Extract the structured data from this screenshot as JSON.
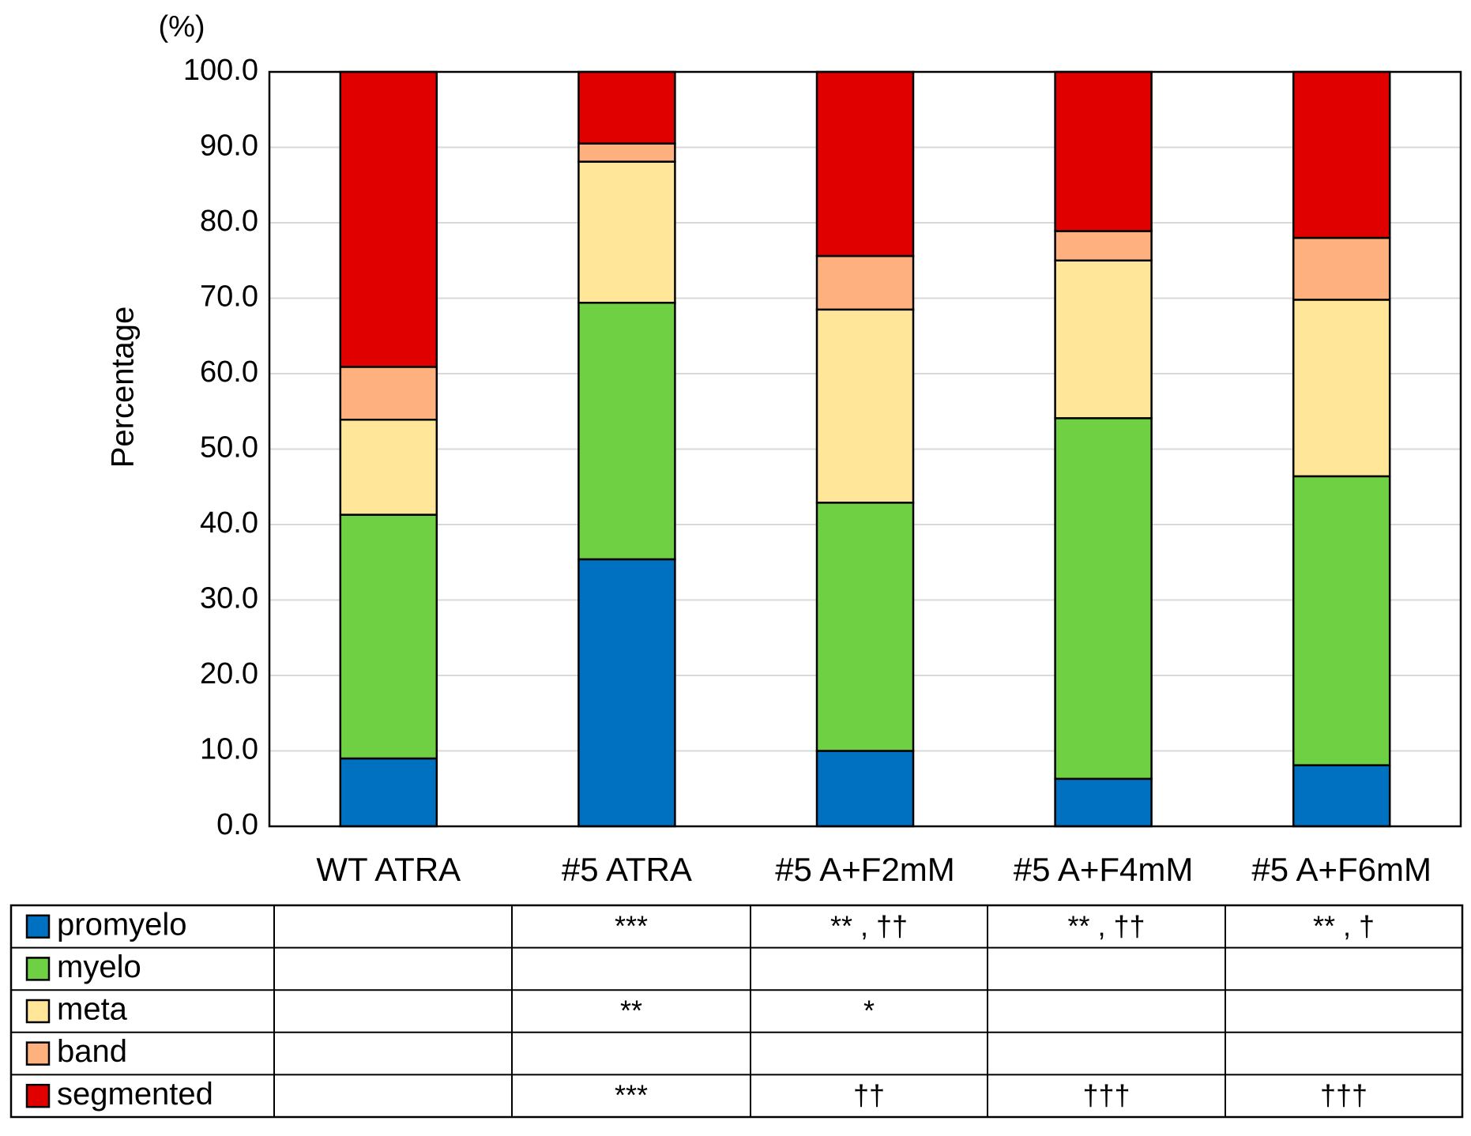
{
  "chart_data": {
    "type": "stacked_bar",
    "y_unit": "(%)",
    "y_label": "Percentage",
    "categories": [
      "WT ATRA",
      "#5 ATRA",
      "#5 A+F2mM",
      "#5 A+F4mM",
      "#5 A+F6mM"
    ],
    "series": [
      {
        "name": "promyelo",
        "color": "#0070c0",
        "values": [
          9.0,
          35.4,
          10.0,
          6.3,
          8.1
        ],
        "significance": [
          null,
          "***",
          "** , ††",
          "** , ††",
          "** , †"
        ]
      },
      {
        "name": "myelo",
        "color": "#70d044",
        "values": [
          32.3,
          34.0,
          32.9,
          47.8,
          38.3
        ],
        "significance": [
          null,
          null,
          null,
          null,
          null
        ]
      },
      {
        "name": "meta",
        "color": "#ffe699",
        "values": [
          12.6,
          18.7,
          25.6,
          20.9,
          23.4
        ],
        "significance": [
          null,
          "**",
          "*",
          null,
          null
        ]
      },
      {
        "name": "band",
        "color": "#ffb07f",
        "values": [
          7.0,
          2.4,
          7.1,
          3.9,
          8.2
        ],
        "significance": [
          null,
          null,
          null,
          null,
          null
        ]
      },
      {
        "name": "segmented",
        "color": "#e00000",
        "values": [
          39.1,
          9.5,
          24.4,
          21.1,
          22.0
        ],
        "significance": [
          null,
          "***",
          "††",
          "†††",
          "†††"
        ]
      }
    ],
    "ylim": [
      0,
      100
    ],
    "yticks": [
      {
        "value": 0,
        "label": "0.0"
      },
      {
        "value": 10,
        "label": "10.0"
      },
      {
        "value": 20,
        "label": "20.0"
      },
      {
        "value": 30,
        "label": "30.0"
      },
      {
        "value": 40,
        "label": "40.0"
      },
      {
        "value": 50,
        "label": "50.0"
      },
      {
        "value": 60,
        "label": "60.0"
      },
      {
        "value": 70,
        "label": "70.0"
      },
      {
        "value": 80,
        "label": "80.0"
      },
      {
        "value": 90,
        "label": "90.0"
      },
      {
        "value": 100,
        "label": "100.0"
      }
    ],
    "grid": true
  }
}
